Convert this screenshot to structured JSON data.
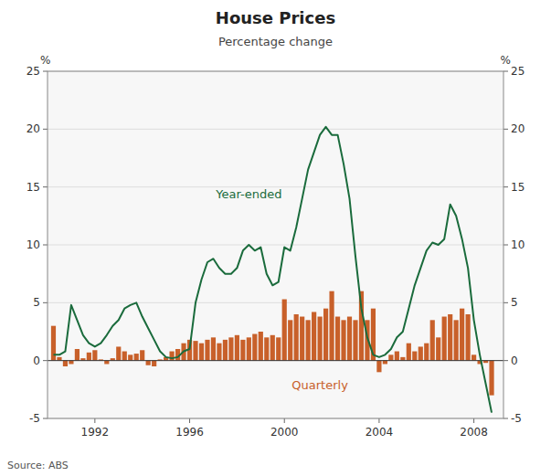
{
  "chart_data": {
    "type": "bar",
    "title": "House Prices",
    "subtitle": "Percentage change",
    "source": "Source: ABS",
    "ylabel": "%",
    "y2label": "%",
    "xlim": [
      1990.0,
      2009.25
    ],
    "xticks": [
      1992,
      1996,
      2000,
      2004,
      2008
    ],
    "ylim": [
      -5,
      25
    ],
    "yticks": [
      -5,
      0,
      5,
      10,
      15,
      20,
      25
    ],
    "y2lim": [
      -5,
      25
    ],
    "y2ticks": [
      -5,
      0,
      5,
      10,
      15,
      20,
      25
    ],
    "grid": true,
    "x": [
      1990.25,
      1990.5,
      1990.75,
      1991.0,
      1991.25,
      1991.5,
      1991.75,
      1992.0,
      1992.25,
      1992.5,
      1992.75,
      1993.0,
      1993.25,
      1993.5,
      1993.75,
      1994.0,
      1994.25,
      1994.5,
      1994.75,
      1995.0,
      1995.25,
      1995.5,
      1995.75,
      1996.0,
      1996.25,
      1996.5,
      1996.75,
      1997.0,
      1997.25,
      1997.5,
      1997.75,
      1998.0,
      1998.25,
      1998.5,
      1998.75,
      1999.0,
      1999.25,
      1999.5,
      1999.75,
      2000.0,
      2000.25,
      2000.5,
      2000.75,
      2001.0,
      2001.25,
      2001.5,
      2001.75,
      2002.0,
      2002.25,
      2002.5,
      2002.75,
      2003.0,
      2003.25,
      2003.5,
      2003.75,
      2004.0,
      2004.25,
      2004.5,
      2004.75,
      2005.0,
      2005.25,
      2005.5,
      2005.75,
      2006.0,
      2006.25,
      2006.5,
      2006.75,
      2007.0,
      2007.25,
      2007.5,
      2007.75,
      2008.0,
      2008.25,
      2008.5,
      2008.75
    ],
    "series": [
      {
        "type": "bar",
        "color": "#c8602a",
        "values": [
          3.0,
          0.3,
          -0.5,
          -0.3,
          1.0,
          0.2,
          0.7,
          0.9,
          0.1,
          -0.3,
          0.2,
          1.2,
          0.8,
          0.5,
          0.6,
          0.9,
          -0.4,
          -0.5,
          0.1,
          0.3,
          0.8,
          1.0,
          1.5,
          1.8,
          1.7,
          1.5,
          1.8,
          2.0,
          1.5,
          1.8,
          2.0,
          2.2,
          1.8,
          2.0,
          2.3,
          2.5,
          2.0,
          2.2,
          2.0,
          5.3,
          3.5,
          4.0,
          3.8,
          3.5,
          4.2,
          3.8,
          4.5,
          6.0,
          3.8,
          3.5,
          3.8,
          3.5,
          6.0,
          3.5,
          4.5,
          -1.0,
          -0.3,
          0.5,
          0.8,
          0.3,
          1.5,
          0.8,
          1.2,
          1.5,
          3.5,
          2.0,
          3.8,
          4.0,
          3.5,
          4.5,
          4.0,
          0.5,
          -0.3,
          -0.2,
          -3.0
        ]
      },
      {
        "type": "line",
        "color": "#1a6b3c",
        "values": [
          0.5,
          0.5,
          0.8,
          4.8,
          3.5,
          2.2,
          1.5,
          1.2,
          1.5,
          2.2,
          3.0,
          3.5,
          4.5,
          4.8,
          5.0,
          3.8,
          2.8,
          1.8,
          0.8,
          0.3,
          0.2,
          0.3,
          0.8,
          1.0,
          5.0,
          7.0,
          8.5,
          8.8,
          8.0,
          7.5,
          7.5,
          8.0,
          9.5,
          10.0,
          9.5,
          9.8,
          7.5,
          6.5,
          6.8,
          9.8,
          9.5,
          11.5,
          14.0,
          16.5,
          18.0,
          19.5,
          20.2,
          19.5,
          19.5,
          17.0,
          14.0,
          9.0,
          4.5,
          2.0,
          0.5,
          0.3,
          0.5,
          1.0,
          2.0,
          2.5,
          4.5,
          6.5,
          8.0,
          9.5,
          10.2,
          10.0,
          10.5,
          13.5,
          12.5,
          10.5,
          8.0,
          3.5,
          0.5,
          -2.0,
          -4.5
        ]
      }
    ],
    "annotations": [
      {
        "text": "Year-ended",
        "x": 1998.5,
        "y": 14.0,
        "color": "#1a6b3c"
      },
      {
        "text": "Quarterly",
        "x": 2001.5,
        "y": -2.5,
        "color": "#c8602a"
      }
    ]
  }
}
